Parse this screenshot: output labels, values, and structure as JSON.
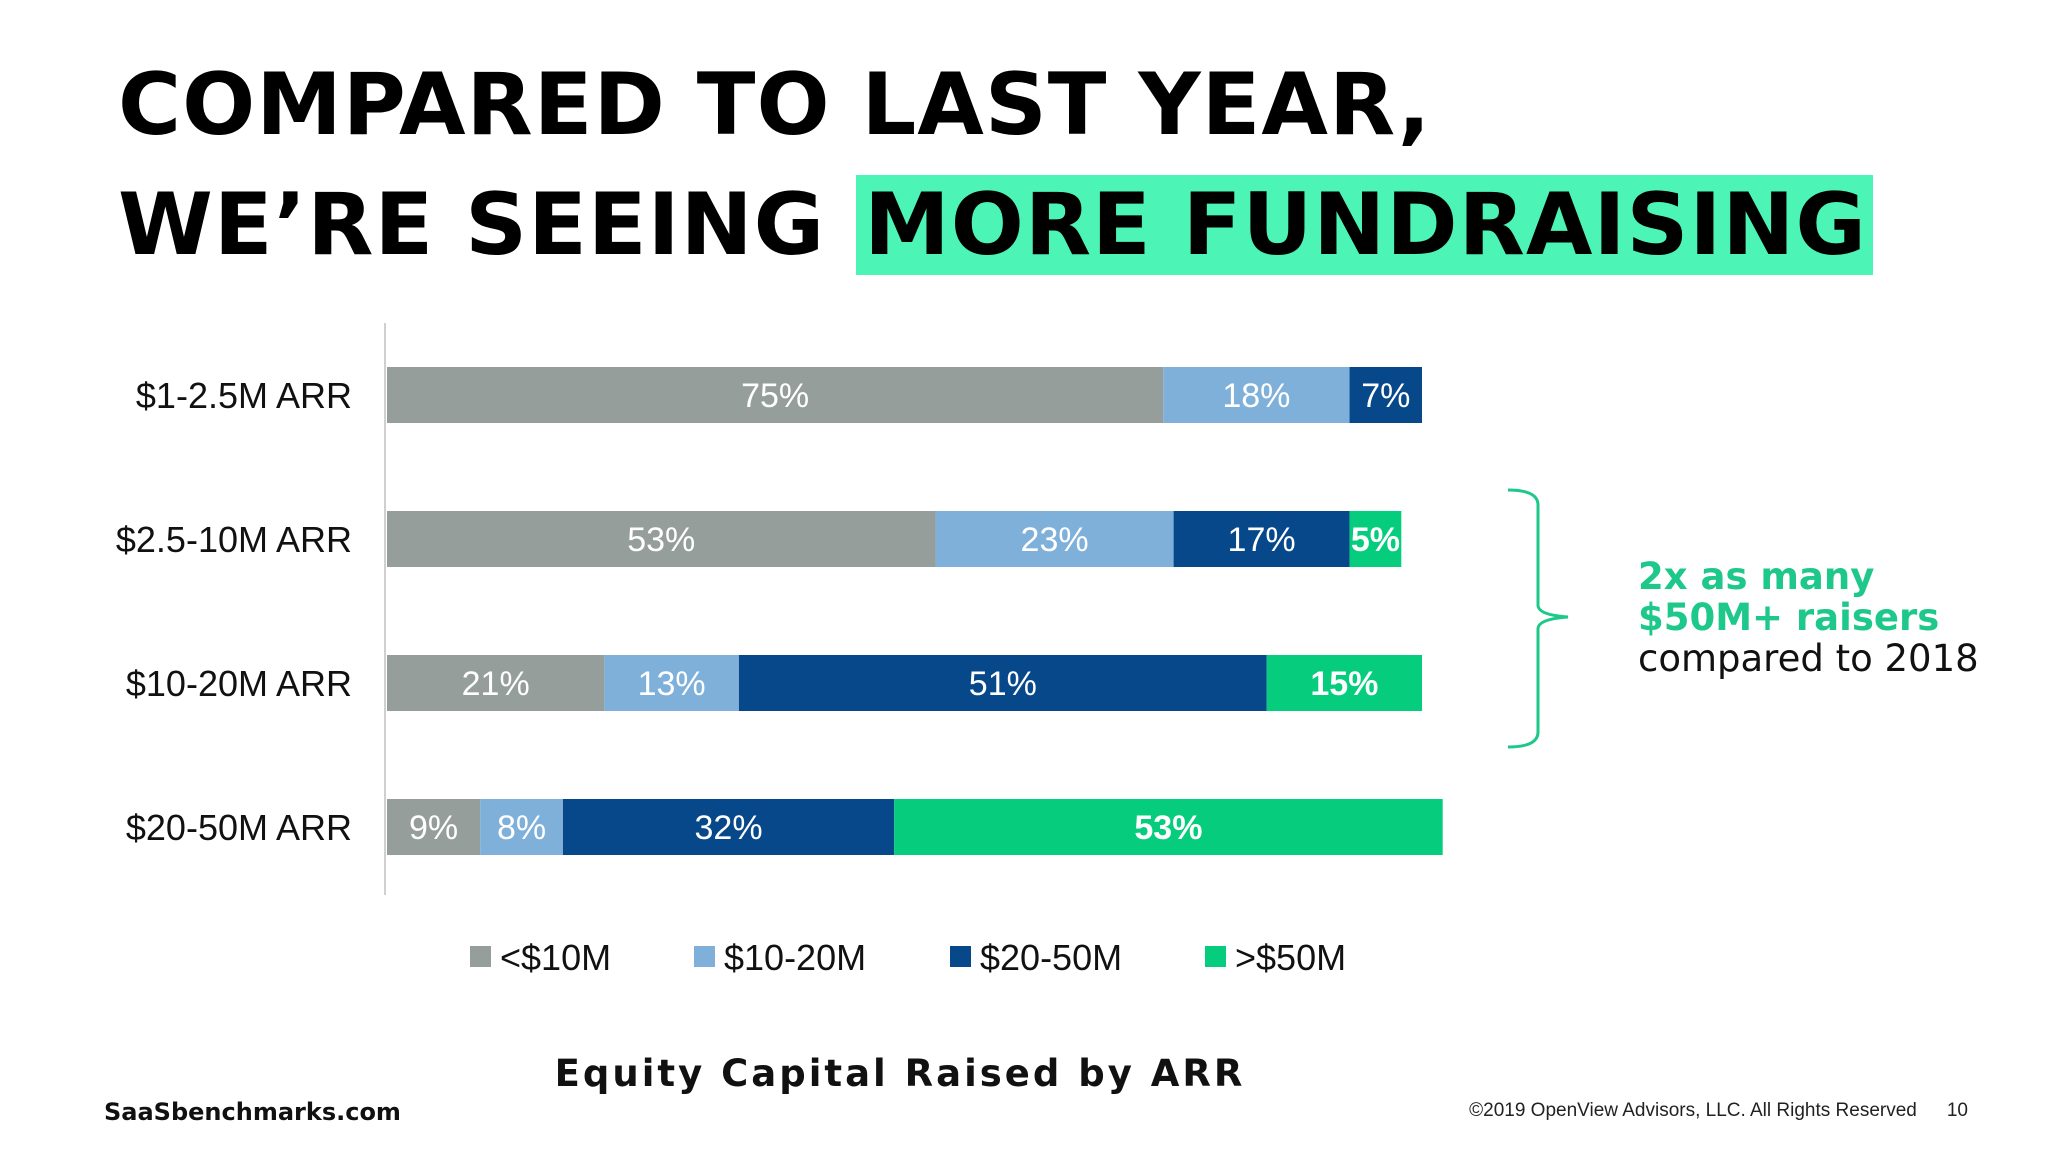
{
  "headline": {
    "line1": "COMPARED TO LAST YEAR,",
    "line2_plain": "WE’RE SEEING ",
    "line2_highlight": "MORE FUNDRAISING"
  },
  "colors": {
    "highlight": "#4cf5b6",
    "under10": "#969e9c",
    "ten_20": "#7fb0d9",
    "twenty_50": "#07488a",
    "over50": "#05cd7d",
    "callout_green": "#1ec88a"
  },
  "callout": {
    "line1": "2x as many",
    "line2": "$50M+ raisers",
    "line3": "compared to 2018"
  },
  "chart_data": {
    "type": "bar",
    "orientation": "horizontal",
    "stacked": true,
    "title": "Equity Capital Raised by ARR",
    "categories": [
      "$1-2.5M ARR",
      "$2.5-10M ARR",
      "$10-20M ARR",
      "$20-50M ARR"
    ],
    "series": [
      {
        "name": "<$10M",
        "values": [
          75,
          53,
          21,
          9
        ],
        "labels": [
          "75%",
          "53%",
          "21%",
          "9%"
        ],
        "color": "#969e9c"
      },
      {
        "name": "$10-20M",
        "values": [
          18,
          23,
          13,
          8
        ],
        "labels": [
          "18%",
          "23%",
          "13%",
          "8%"
        ],
        "color": "#7fb0d9"
      },
      {
        "name": "$20-50M",
        "values": [
          7,
          17,
          51,
          32
        ],
        "labels": [
          "7%",
          "17%",
          "51%",
          "32%"
        ],
        "color": "#07488a"
      },
      {
        "name": ">$50M",
        "values": [
          0,
          5,
          15,
          53
        ],
        "labels": [
          "",
          "5%",
          "15%",
          "53%"
        ],
        "color": "#05cd7d"
      }
    ],
    "legend_position": "bottom",
    "grid": false
  },
  "footer": {
    "site": "SaaSbenchmarks.com",
    "copyright": "©2019 OpenView Advisors, LLC. All Rights Reserved",
    "page": "10"
  }
}
